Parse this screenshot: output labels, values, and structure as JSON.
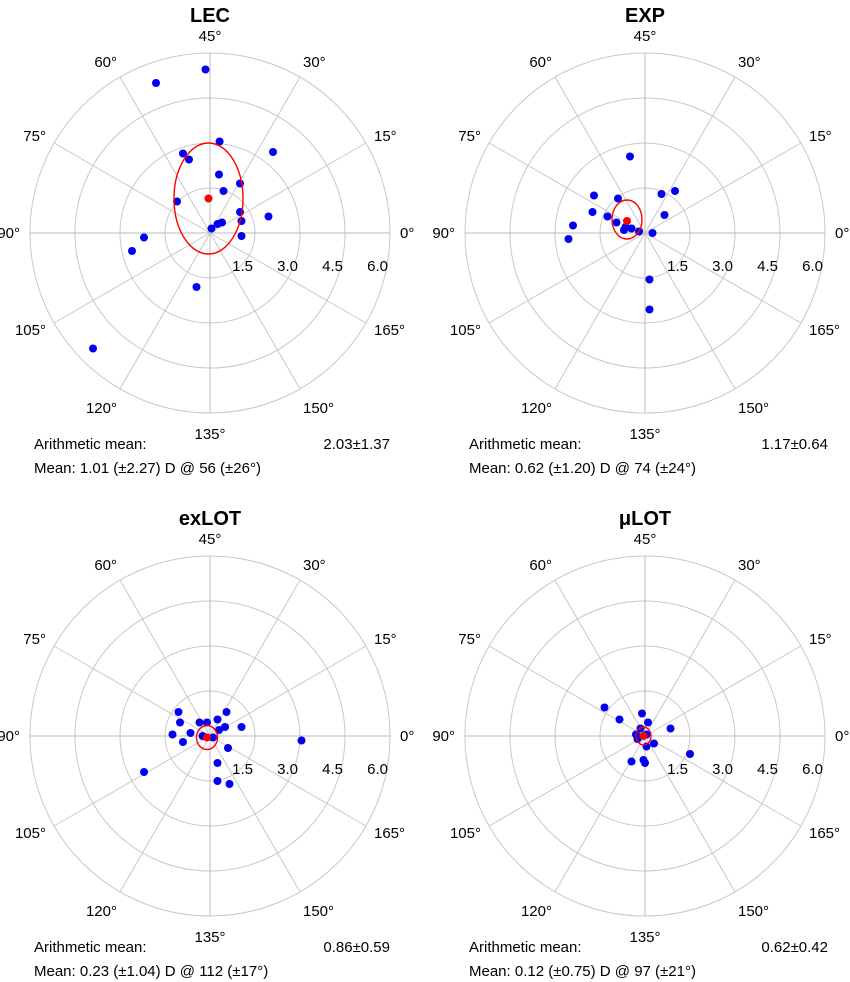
{
  "chart_data": [
    {
      "type": "scatter",
      "coordinate_system": "polar (double-angle)",
      "title": "LEC",
      "angle_tick_labels": [
        "0°",
        "15°",
        "30°",
        "45°",
        "60°",
        "75°",
        "90°",
        "105°",
        "120°",
        "135°",
        "150°",
        "165°"
      ],
      "radial_tick_labels": [
        "1.5",
        "3.0",
        "4.5",
        "6.0"
      ],
      "radial_range": [
        0,
        6
      ],
      "grid": true,
      "points": [
        {
          "x": -1.8,
          "y": 5.0
        },
        {
          "x": -0.15,
          "y": 5.45
        },
        {
          "x": 0.32,
          "y": 3.05
        },
        {
          "x": 2.1,
          "y": 2.7
        },
        {
          "x": -0.7,
          "y": 2.45
        },
        {
          "x": -0.9,
          "y": 2.65
        },
        {
          "x": 0.3,
          "y": 1.95
        },
        {
          "x": 1.0,
          "y": 1.65
        },
        {
          "x": 0.45,
          "y": 1.4
        },
        {
          "x": -1.1,
          "y": 1.05
        },
        {
          "x": 1.0,
          "y": 0.7
        },
        {
          "x": 1.95,
          "y": 0.55
        },
        {
          "x": 1.05,
          "y": 0.4
        },
        {
          "x": 0.4,
          "y": 0.35
        },
        {
          "x": 0.25,
          "y": 0.3
        },
        {
          "x": 0.05,
          "y": 0.15
        },
        {
          "x": 1.05,
          "y": -0.1
        },
        {
          "x": -2.2,
          "y": -0.15
        },
        {
          "x": -2.6,
          "y": -0.6
        },
        {
          "x": -0.45,
          "y": -1.8
        },
        {
          "x": -3.9,
          "y": -3.85
        }
      ],
      "mean_point": {
        "x": -0.05,
        "y": 1.15
      },
      "ellipse": {
        "cx": -0.05,
        "cy": 1.15,
        "rx": 1.15,
        "ry": 1.85
      },
      "stats": {
        "arithmetic_label": "Arithmetic mean:",
        "arithmetic_value": "2.03±1.37",
        "mean_line": "Mean: 1.01 (±2.27) D @ 56 (±26°)"
      }
    },
    {
      "type": "scatter",
      "coordinate_system": "polar (double-angle)",
      "title": "EXP",
      "angle_tick_labels": [
        "0°",
        "15°",
        "30°",
        "45°",
        "60°",
        "75°",
        "90°",
        "105°",
        "120°",
        "135°",
        "150°",
        "165°"
      ],
      "radial_tick_labels": [
        "1.5",
        "3.0",
        "4.5",
        "6.0"
      ],
      "radial_range": [
        0,
        6
      ],
      "grid": true,
      "points": [
        {
          "x": -0.5,
          "y": 2.55
        },
        {
          "x": 1.0,
          "y": 1.4
        },
        {
          "x": 0.55,
          "y": 1.3
        },
        {
          "x": -1.7,
          "y": 1.25
        },
        {
          "x": -0.9,
          "y": 1.15
        },
        {
          "x": -1.75,
          "y": 0.7
        },
        {
          "x": 0.65,
          "y": 0.6
        },
        {
          "x": -1.25,
          "y": 0.55
        },
        {
          "x": -0.95,
          "y": 0.35
        },
        {
          "x": -0.65,
          "y": 0.2
        },
        {
          "x": -0.45,
          "y": 0.15
        },
        {
          "x": -0.7,
          "y": 0.1
        },
        {
          "x": -0.2,
          "y": 0.05
        },
        {
          "x": 0.25,
          "y": 0.0
        },
        {
          "x": -2.4,
          "y": 0.25
        },
        {
          "x": -2.55,
          "y": -0.2
        },
        {
          "x": 0.15,
          "y": -1.55
        },
        {
          "x": 0.15,
          "y": -2.55
        }
      ],
      "mean_point": {
        "x": -0.6,
        "y": 0.4
      },
      "ellipse": {
        "cx": -0.6,
        "cy": 0.45,
        "rx": 0.5,
        "ry": 0.65
      },
      "stats": {
        "arithmetic_label": "Arithmetic mean:",
        "arithmetic_value": "1.17±0.64",
        "mean_line": "Mean: 0.62 (±1.20) D @ 74 (±24°)"
      }
    },
    {
      "type": "scatter",
      "coordinate_system": "polar (double-angle)",
      "title": "exLOT",
      "angle_tick_labels": [
        "0°",
        "15°",
        "30°",
        "45°",
        "60°",
        "75°",
        "90°",
        "105°",
        "120°",
        "135°",
        "150°",
        "165°"
      ],
      "radial_tick_labels": [
        "1.5",
        "3.0",
        "4.5",
        "6.0"
      ],
      "radial_range": [
        0,
        6
      ],
      "grid": true,
      "points": [
        {
          "x": -1.05,
          "y": 0.8
        },
        {
          "x": 0.55,
          "y": 0.8
        },
        {
          "x": 0.25,
          "y": 0.55
        },
        {
          "x": -0.1,
          "y": 0.45
        },
        {
          "x": -0.35,
          "y": 0.45
        },
        {
          "x": -1.0,
          "y": 0.45
        },
        {
          "x": 1.05,
          "y": 0.3
        },
        {
          "x": 0.5,
          "y": 0.3
        },
        {
          "x": 0.3,
          "y": 0.2
        },
        {
          "x": -0.65,
          "y": 0.1
        },
        {
          "x": -1.25,
          "y": 0.05
        },
        {
          "x": -0.25,
          "y": 0.0
        },
        {
          "x": 0.1,
          "y": -0.05
        },
        {
          "x": 3.05,
          "y": -0.15
        },
        {
          "x": -0.9,
          "y": -0.2
        },
        {
          "x": 0.6,
          "y": -0.4
        },
        {
          "x": 0.25,
          "y": -0.9
        },
        {
          "x": -2.2,
          "y": -1.2
        },
        {
          "x": 0.65,
          "y": -1.6
        },
        {
          "x": 0.25,
          "y": -1.5
        }
      ],
      "mean_point": {
        "x": -0.1,
        "y": -0.05
      },
      "ellipse": {
        "cx": -0.1,
        "cy": -0.05,
        "rx": 0.35,
        "ry": 0.4
      },
      "stats": {
        "arithmetic_label": "Arithmetic mean:",
        "arithmetic_value": "0.86±0.59",
        "mean_line": "Mean: 0.23 (±1.04) D @ 112 (±17°)"
      }
    },
    {
      "type": "scatter",
      "coordinate_system": "polar (double-angle)",
      "title": "μLOT",
      "angle_tick_labels": [
        "0°",
        "15°",
        "30°",
        "45°",
        "60°",
        "75°",
        "90°",
        "105°",
        "120°",
        "135°",
        "150°",
        "165°"
      ],
      "radial_tick_labels": [
        "1.5",
        "3.0",
        "4.5",
        "6.0"
      ],
      "radial_range": [
        0,
        6
      ],
      "grid": true,
      "points": [
        {
          "x": -1.35,
          "y": 0.95
        },
        {
          "x": -0.85,
          "y": 0.55
        },
        {
          "x": -0.1,
          "y": 0.75
        },
        {
          "x": 0.1,
          "y": 0.45
        },
        {
          "x": 0.85,
          "y": 0.25
        },
        {
          "x": -0.15,
          "y": 0.25
        },
        {
          "x": -0.3,
          "y": 0.05
        },
        {
          "x": 0.05,
          "y": 0.05
        },
        {
          "x": -0.25,
          "y": -0.1
        },
        {
          "x": 0.3,
          "y": -0.25
        },
        {
          "x": 0.05,
          "y": -0.35
        },
        {
          "x": 1.5,
          "y": -0.6
        },
        {
          "x": -0.45,
          "y": -0.85
        },
        {
          "x": 0.0,
          "y": -0.9
        },
        {
          "x": -0.05,
          "y": -0.8
        }
      ],
      "mean_point": {
        "x": -0.05,
        "y": 0.0
      },
      "ellipse": {
        "cx": -0.05,
        "cy": 0.0,
        "rx": 0.25,
        "ry": 0.3
      },
      "stats": {
        "arithmetic_label": "Arithmetic mean:",
        "arithmetic_value": "0.62±0.42",
        "mean_line": "Mean: 0.12 (±0.75) D @ 97 (±21°)"
      }
    }
  ],
  "colors": {
    "points": "#0000ee",
    "mean": "#ff0000",
    "ellipse": "#ff0000",
    "grid": "#c8c8c8",
    "axis": "#bbbbbb"
  }
}
